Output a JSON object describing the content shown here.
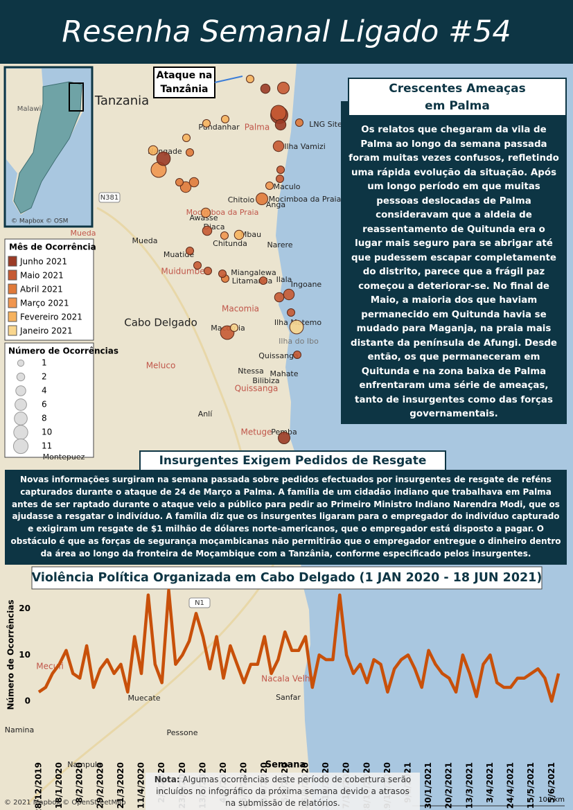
{
  "header": {
    "title": "Resenha Semanal Ligado #54"
  },
  "inset": {
    "label": "Malawi",
    "credit": "© Mapbox © OSM"
  },
  "map": {
    "callout": [
      "Ataque na",
      "Tanzânia"
    ],
    "labels": [
      "Tanzania",
      "Palma",
      "LNG Site",
      "Pundanhar",
      "Ilha Vamizi",
      "Nangade",
      "Maculo",
      "Chitoio",
      "Mocimboa da Praia",
      "Anga",
      "Mocimboa da Praia",
      "Awasse",
      "Diaca",
      "Mbau",
      "Mueda",
      "Chitunda",
      "Narere",
      "Muatide",
      "Muidumbe",
      "Miangalewa",
      "Litamanda",
      "Ilala",
      "Ingoane",
      "Macomia",
      "Ilha Matemo",
      "Macomia",
      "Cabo Delgado",
      "Ilha do Ibo",
      "Quissanga",
      "Meluco",
      "Ntessa",
      "Mahate",
      "Bilibiza",
      "Quissanga",
      "Anlí",
      "Metuge",
      "Pemba",
      "Montepuez",
      "Mueda",
      "Mecufi",
      "Muecate",
      "Nacala Velha",
      "Sanfar",
      "Namina",
      "Pessone",
      "Nampula"
    ],
    "roads": [
      "N381",
      "N1"
    ],
    "credit": "© 2021 Mapbox © OpenStreetMap",
    "scale": "100 km",
    "markers": [
      {
        "month": 4,
        "count": 1
      },
      {
        "month": 1,
        "count": 4
      },
      {
        "month": 0,
        "count": 2
      },
      {
        "month": 0,
        "count": 11
      },
      {
        "month": 1,
        "count": 8
      },
      {
        "month": 0,
        "count": 3
      },
      {
        "month": 2,
        "count": 1
      },
      {
        "month": 4,
        "count": 1
      },
      {
        "month": 4,
        "count": 1
      },
      {
        "month": 4,
        "count": 1
      },
      {
        "month": 1,
        "count": 3
      },
      {
        "month": 0,
        "count": 6
      },
      {
        "month": 3,
        "count": 8
      },
      {
        "month": 2,
        "count": 1
      },
      {
        "month": 4,
        "count": 2
      },
      {
        "month": 2,
        "count": 3
      },
      {
        "month": 2,
        "count": 2
      },
      {
        "month": 2,
        "count": 1
      },
      {
        "month": 2,
        "count": 4
      },
      {
        "month": 3,
        "count": 2
      },
      {
        "month": 1,
        "count": 2
      },
      {
        "month": 4,
        "count": 2
      },
      {
        "month": 3,
        "count": 1
      },
      {
        "month": 1,
        "count": 1
      },
      {
        "month": 1,
        "count": 1
      },
      {
        "month": 1,
        "count": 1
      },
      {
        "month": 2,
        "count": 1
      },
      {
        "month": 1,
        "count": 1
      },
      {
        "month": 1,
        "count": 2
      },
      {
        "month": 1,
        "count": 3
      },
      {
        "month": 5,
        "count": 6
      },
      {
        "month": 1,
        "count": 1
      },
      {
        "month": 1,
        "count": 6
      },
      {
        "month": 5,
        "count": 1
      },
      {
        "month": 1,
        "count": 1
      },
      {
        "month": 0,
        "count": 4
      },
      {
        "month": 1,
        "count": 1
      },
      {
        "month": 1,
        "count": 1
      },
      {
        "month": 3,
        "count": 1
      },
      {
        "month": 1,
        "count": 1
      }
    ]
  },
  "legend_month": {
    "title": "Mês de Ocorrência",
    "items": [
      {
        "label": "Junho 2021",
        "color": "#9b3b26"
      },
      {
        "label": "Maio 2021",
        "color": "#c65a33"
      },
      {
        "label": "Abril 2021",
        "color": "#e07a3a"
      },
      {
        "label": "Março 2021",
        "color": "#f0964f"
      },
      {
        "label": "Fevereiro 2021",
        "color": "#f6b25e"
      },
      {
        "label": "Janeiro 2021",
        "color": "#f9d68e"
      }
    ]
  },
  "legend_size": {
    "title": "Número de Ocorrências",
    "items": [
      1,
      2,
      4,
      6,
      8,
      10,
      11
    ]
  },
  "panel_palma": {
    "title": [
      "Crescentes Ameaças",
      "em Palma"
    ],
    "text": "Os relatos que chegaram da vila de Palma ao longo da semana passada foram muitas vezes confusos, refletindo uma rápida evolução da situação. Após um longo período em que muitas pessoas deslocadas de Palma consideravam que a aldeia de reassentamento de Quitunda era o lugar mais seguro para se abrigar até que pudessem escapar completamente do distrito, parece que a frágil paz começou a deteriorar-se. No final de Maio, a maioria dos que haviam permanecido em Quitunda havia se mudado para Maganja, na praia mais distante da península de Afungi. Desde então, os que permaneceram em Quitunda e na zona baixa de Palma enfrentaram uma série de ameaças, tanto de insurgentes como das forças governamentais."
  },
  "panel_ransom": {
    "title": "Insurgentes Exigem Pedidos de Resgate",
    "text": "Novas informações surgiram na semana passada sobre pedidos efectuados por insurgentes de resgate de reféns capturados durante o ataque de 24 de Março a Palma. A família de um cidadão indiano que trabalhava em Palma antes de ser raptado durante o ataque veio a público para pedir ao Primeiro Ministro Indiano Narendra Modi, que os ajudasse a resgatar o indivíduo. A família diz que os insurgentes ligaram para o empregador do  indivíduo capturado e exigiram um resgate de $1 milhão de dólares norte-americanos, que o empregador está disposto a pagar. O obstáculo é que as forças de segurança moçambicanas não permitirão que o empregador entregue o dinheiro dentro da área ao longo da fronteira de Moçambique com a Tanzânia, conforme especificado pelos insurgentes."
  },
  "note": {
    "label": "Nota:",
    "text": "Algumas ocorrências deste período de cobertura serão incluídos no infográfico da próxima semana devido a atrasos na submissão de relatórios."
  },
  "chart_data": {
    "type": "line",
    "title": "Violência Política Organizada em Cabo Delgado (1 JAN 2020 - 18 JUN 2021)",
    "x_label": "Semana",
    "y_label": "Número de Ocorrências",
    "categories": [
      "28/12/2019",
      null,
      null,
      "18/1/2020",
      null,
      null,
      "8/2/2020",
      null,
      null,
      "29/2/2020",
      null,
      null,
      "21/3/2020",
      null,
      null,
      "11/4/2020",
      null,
      null,
      "2/5/2020",
      null,
      null,
      "23/5/2020",
      null,
      null,
      "13/6/2020",
      null,
      null,
      "4/7/2020",
      null,
      null,
      "25/7/2020",
      null,
      null,
      "15/8/2020",
      null,
      null,
      "5/9/2020",
      null,
      null,
      "26/9/2020",
      null,
      null,
      "17/10/2020",
      null,
      null,
      "7/11/2020",
      null,
      null,
      "28/11/2020",
      null,
      null,
      "19/12/2020",
      null,
      null,
      "9/1/2021",
      null,
      null,
      "30/1/2021",
      null,
      null,
      "20/2/2021",
      null,
      null,
      "13/3/2021",
      null,
      null,
      "3/4/2021",
      null,
      null,
      "24/4/2021",
      null,
      null,
      "15/5/2021",
      null,
      null,
      "5/6/2021",
      null
    ],
    "values": [
      2,
      3,
      6,
      8,
      11,
      6,
      5,
      12,
      3,
      7,
      9,
      6,
      8,
      2,
      14,
      6,
      23,
      8,
      4,
      24,
      8,
      10,
      13,
      19,
      14,
      7,
      14,
      5,
      12,
      8,
      4,
      8,
      8,
      14,
      6,
      9,
      15,
      11,
      11,
      14,
      3,
      10,
      9,
      9,
      23,
      10,
      6,
      8,
      4,
      9,
      8,
      2,
      7,
      9,
      10,
      7,
      3,
      11,
      8,
      6,
      5,
      2,
      10,
      6,
      1,
      8,
      10,
      4,
      3,
      3,
      5,
      5,
      6,
      7,
      5,
      0,
      6
    ],
    "color": "#c8500a",
    "ylim": [
      -1.5,
      24
    ],
    "yticks": [
      0,
      10,
      20
    ]
  }
}
